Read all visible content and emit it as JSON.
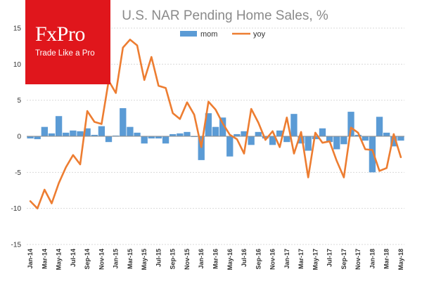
{
  "brand": {
    "name": "FxPro",
    "tagline": "Trade Like a Pro",
    "color": "#e0161c"
  },
  "chart_data": {
    "type": "bar+line",
    "title": "U.S. NAR Pending Home Sales, %",
    "xlabel": "",
    "ylabel": "",
    "ylim": [
      -15,
      15
    ],
    "yticks": [
      -15,
      -10,
      -5,
      0,
      5,
      10,
      15
    ],
    "grid": true,
    "legend_position": "top",
    "categories": [
      "Jan-14",
      "Feb-14",
      "Mar-14",
      "Apr-14",
      "May-14",
      "Jun-14",
      "Jul-14",
      "Aug-14",
      "Sep-14",
      "Oct-14",
      "Nov-14",
      "Dec-14",
      "Jan-15",
      "Feb-15",
      "Mar-15",
      "Apr-15",
      "May-15",
      "Jun-15",
      "Jul-15",
      "Aug-15",
      "Sep-15",
      "Oct-15",
      "Nov-15",
      "Dec-15",
      "Jan-16",
      "Feb-16",
      "Mar-16",
      "Apr-16",
      "May-16",
      "Jun-16",
      "Jul-16",
      "Aug-16",
      "Sep-16",
      "Oct-16",
      "Nov-16",
      "Dec-16",
      "Jan-17",
      "Feb-17",
      "Mar-17",
      "Apr-17",
      "May-17",
      "Jun-17",
      "Jul-17",
      "Aug-17",
      "Sep-17",
      "Oct-17",
      "Nov-17",
      "Dec-17",
      "Jan-18",
      "Feb-18",
      "Mar-18",
      "Apr-18",
      "May-18"
    ],
    "tick_labels": [
      "Jan-14",
      "Mar-14",
      "May-14",
      "Jul-14",
      "Sep-14",
      "Nov-14",
      "Jan-15",
      "Mar-15",
      "May-15",
      "Jul-15",
      "Sep-15",
      "Nov-15",
      "Jan-16",
      "Mar-16",
      "May-16",
      "Jul-16",
      "Sep-16",
      "Nov-16",
      "Jan-17",
      "Mar-17",
      "May-17",
      "Jul-17",
      "Sep-17",
      "Nov-17",
      "Jan-18",
      "Mar-18",
      "May-18"
    ],
    "series": [
      {
        "name": "mom",
        "kind": "bar",
        "color": "#5b9bd5",
        "values": [
          -0.3,
          -0.4,
          1.3,
          0.4,
          2.8,
          0.5,
          0.8,
          0.7,
          1.1,
          0.2,
          1.4,
          -0.8,
          0.1,
          3.9,
          1.3,
          0.5,
          -1.0,
          -0.3,
          -0.3,
          -1.0,
          0.3,
          0.4,
          0.6,
          -0.1,
          -3.3,
          3.2,
          1.3,
          2.6,
          -2.8,
          0.3,
          0.7,
          -1.2,
          0.6,
          -0.3,
          -1.2,
          0.8,
          -0.8,
          3.1,
          -1.0,
          -2.0,
          -0.4,
          1.1,
          -0.8,
          -1.8,
          -1.1,
          3.4,
          0.2,
          -0.6,
          -5.0,
          2.7,
          0.5,
          -1.4,
          -0.6
        ]
      },
      {
        "name": "yoy",
        "kind": "line",
        "color": "#ed7d31",
        "values": [
          -9.0,
          -10.0,
          -7.4,
          -9.3,
          -6.5,
          -4.3,
          -2.6,
          -3.9,
          3.5,
          2.0,
          1.7,
          7.7,
          6.0,
          12.3,
          13.4,
          12.6,
          7.8,
          11.0,
          7.0,
          6.7,
          3.2,
          2.4,
          4.7,
          3.0,
          -1.5,
          4.8,
          3.7,
          1.8,
          0.2,
          -0.4,
          -2.4,
          3.8,
          1.9,
          -0.5,
          0.7,
          -1.5,
          2.6,
          -2.4,
          0.6,
          -5.7,
          0.5,
          -0.9,
          -0.7,
          -3.4,
          -5.7,
          1.2,
          0.5,
          -1.8,
          -1.9,
          -4.8,
          -4.4,
          0.3,
          -2.9
        ]
      }
    ]
  }
}
